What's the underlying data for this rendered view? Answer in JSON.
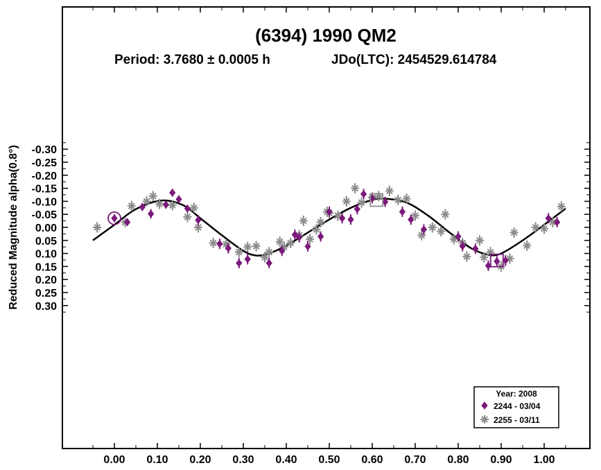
{
  "chart_data": {
    "type": "scatter",
    "title": "(6394) 1990 QM2",
    "subtitle_period": "Period: 3.7680 ± 0.0005 h",
    "subtitle_epoch": "JDo(LTC): 2454529.614784",
    "ylabel": "Reduced Magnitude alpha(0.8°)",
    "xlabel": "",
    "xlim": [
      -0.12,
      1.1
    ],
    "ylim": [
      -0.35,
      0.35
    ],
    "y_inverted": true,
    "x_ticks": [
      "0.00",
      "0.10",
      "0.20",
      "0.30",
      "0.40",
      "0.50",
      "0.60",
      "0.70",
      "0.80",
      "0.90",
      "1.00"
    ],
    "y_ticks": [
      "-0.30",
      "-0.25",
      "-0.20",
      "-0.15",
      "-0.10",
      "-0.05",
      "0.00",
      "0.05",
      "0.10",
      "0.15",
      "0.20",
      "0.25",
      "0.30"
    ],
    "grid": false,
    "legend": {
      "title": "Year: 2008",
      "placement": "bottom-right",
      "entries": [
        "2244 - 03/04",
        "2255 - 03/11"
      ]
    },
    "fit_curve": {
      "name": "Fourier fit",
      "color": "#000000",
      "x": [
        -0.05,
        0.0,
        0.05,
        0.11,
        0.16,
        0.2,
        0.25,
        0.3,
        0.33,
        0.36,
        0.4,
        0.45,
        0.5,
        0.55,
        0.6,
        0.63,
        0.68,
        0.73,
        0.78,
        0.83,
        0.87,
        0.9,
        0.95,
        1.0,
        1.05
      ],
      "y": [
        0.05,
        -0.01,
        -0.07,
        -0.103,
        -0.085,
        -0.035,
        0.03,
        0.09,
        0.108,
        0.1,
        0.07,
        0.02,
        -0.03,
        -0.075,
        -0.105,
        -0.11,
        -0.095,
        -0.045,
        0.02,
        0.08,
        0.105,
        0.1,
        0.05,
        -0.01,
        -0.072
      ]
    },
    "series": [
      {
        "name": "2244 - 03/04",
        "marker": "diamond",
        "color": "#7b1a7b",
        "x": [
          0.0,
          0.03,
          0.065,
          0.085,
          0.12,
          0.135,
          0.15,
          0.17,
          0.195,
          0.245,
          0.265,
          0.29,
          0.31,
          0.36,
          0.39,
          0.42,
          0.43,
          0.45,
          0.48,
          0.5,
          0.53,
          0.55,
          0.565,
          0.58,
          0.6,
          0.63,
          0.67,
          0.69,
          0.72,
          0.8,
          0.81,
          0.84,
          0.87,
          0.89,
          0.91,
          1.01,
          1.03
        ],
        "y": [
          -0.035,
          -0.02,
          -0.078,
          -0.052,
          -0.087,
          -0.133,
          -0.108,
          -0.072,
          -0.028,
          0.063,
          0.08,
          0.137,
          0.122,
          0.137,
          0.09,
          0.028,
          0.038,
          0.073,
          0.035,
          -0.06,
          -0.035,
          -0.03,
          -0.07,
          -0.128,
          -0.112,
          -0.098,
          -0.06,
          -0.03,
          0.008,
          0.035,
          0.072,
          0.082,
          0.147,
          0.13,
          0.127,
          -0.035,
          -0.02
        ],
        "err": [
          0.015,
          0.015,
          0.015,
          0.018,
          0.015,
          0.015,
          0.015,
          0.015,
          0.02,
          0.02,
          0.02,
          0.02,
          0.02,
          0.02,
          0.02,
          0.02,
          0.02,
          0.02,
          0.02,
          0.02,
          0.02,
          0.02,
          0.02,
          0.02,
          0.02,
          0.02,
          0.02,
          0.02,
          0.02,
          0.02,
          0.02,
          0.02,
          0.02,
          0.02,
          0.02,
          0.02,
          0.02
        ]
      },
      {
        "name": "2255 - 03/11",
        "marker": "asterisk",
        "color": "#8c8c8c",
        "x": [
          -0.04,
          0.025,
          0.04,
          0.075,
          0.09,
          0.105,
          0.135,
          0.17,
          0.185,
          0.195,
          0.23,
          0.26,
          0.29,
          0.31,
          0.33,
          0.35,
          0.36,
          0.385,
          0.395,
          0.41,
          0.43,
          0.44,
          0.455,
          0.47,
          0.48,
          0.495,
          0.5,
          0.52,
          0.54,
          0.56,
          0.575,
          0.6,
          0.615,
          0.64,
          0.66,
          0.68,
          0.7,
          0.715,
          0.74,
          0.76,
          0.77,
          0.79,
          0.81,
          0.82,
          0.85,
          0.86,
          0.875,
          0.9,
          0.92,
          0.93,
          0.96,
          0.98,
          1.0,
          1.02,
          1.04
        ],
        "y": [
          0.0,
          -0.02,
          -0.082,
          -0.1,
          -0.12,
          -0.09,
          -0.085,
          -0.04,
          -0.075,
          0.0,
          0.06,
          0.065,
          0.095,
          0.075,
          0.072,
          0.115,
          0.095,
          0.055,
          0.075,
          0.06,
          0.03,
          -0.025,
          0.045,
          0.008,
          -0.02,
          -0.06,
          -0.055,
          -0.045,
          -0.1,
          -0.15,
          -0.095,
          -0.115,
          -0.12,
          -0.14,
          -0.105,
          -0.11,
          -0.045,
          0.03,
          0.0,
          0.015,
          -0.05,
          0.045,
          0.06,
          0.112,
          0.05,
          0.115,
          0.095,
          0.15,
          0.12,
          0.02,
          0.07,
          0.0,
          0.005,
          -0.02,
          -0.08
        ],
        "err": [
          0.02,
          0.02,
          0.02,
          0.02,
          0.02,
          0.02,
          0.02,
          0.02,
          0.02,
          0.02,
          0.02,
          0.02,
          0.02,
          0.02,
          0.02,
          0.02,
          0.02,
          0.02,
          0.02,
          0.02,
          0.02,
          0.02,
          0.02,
          0.02,
          0.02,
          0.02,
          0.02,
          0.02,
          0.02,
          0.02,
          0.02,
          0.02,
          0.02,
          0.02,
          0.02,
          0.02,
          0.02,
          0.02,
          0.02,
          0.02,
          0.02,
          0.02,
          0.02,
          0.02,
          0.02,
          0.02,
          0.02,
          0.02,
          0.02,
          0.02,
          0.02,
          0.02,
          0.02,
          0.02,
          0.02
        ]
      }
    ],
    "annotations": [
      {
        "type": "circle",
        "x": 0.0,
        "y": -0.035,
        "color": "#7b1a7b"
      },
      {
        "type": "square",
        "x": 0.89,
        "y": 0.127,
        "color": "#7b1a7b"
      },
      {
        "type": "square",
        "x": 0.61,
        "y": -0.105,
        "color": "#8c8c8c"
      }
    ]
  }
}
